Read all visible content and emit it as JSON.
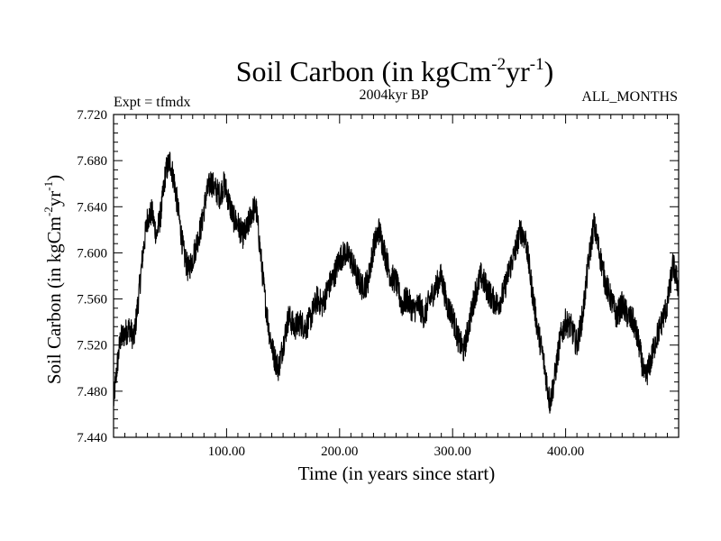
{
  "chart_data": {
    "type": "line",
    "title": {
      "main": "Soil Carbon (in kgCm",
      "sup1": "-2",
      "mid": "yr",
      "sup2": "-1",
      "end": ")"
    },
    "subtitle": "2004kyr BP",
    "left_note": "Expt = tfmdx",
    "right_note": "ALL_MONTHS",
    "xlabel": "Time (in years since start)",
    "ylabel": {
      "main": "Soil Carbon (in kgCm",
      "sup1": "-2",
      "mid": "yr",
      "sup2": "-1",
      "end": ")"
    },
    "xlim": [
      0,
      500
    ],
    "ylim": [
      7.44,
      7.72
    ],
    "x_ticks": [
      100,
      200,
      300,
      400
    ],
    "x_tick_labels": [
      "100.00",
      "200.00",
      "300.00",
      "400.00"
    ],
    "y_ticks": [
      7.44,
      7.48,
      7.52,
      7.56,
      7.6,
      7.64,
      7.68,
      7.72
    ],
    "y_tick_labels": [
      "7.440",
      "7.480",
      "7.520",
      "7.560",
      "7.600",
      "7.640",
      "7.680",
      "7.720"
    ],
    "grid": false,
    "line_color": "#000000",
    "series": [
      {
        "name": "Soil Carbon",
        "noise_amplitude": 0.012,
        "x": [
          0,
          3,
          6,
          10,
          14,
          18,
          22,
          26,
          30,
          34,
          38,
          42,
          46,
          50,
          54,
          58,
          62,
          66,
          70,
          74,
          78,
          82,
          86,
          90,
          94,
          98,
          102,
          106,
          110,
          114,
          118,
          122,
          126,
          130,
          134,
          138,
          142,
          146,
          150,
          155,
          160,
          165,
          170,
          175,
          180,
          185,
          190,
          195,
          200,
          205,
          210,
          215,
          220,
          225,
          230,
          235,
          240,
          245,
          250,
          255,
          260,
          265,
          270,
          275,
          280,
          285,
          290,
          295,
          300,
          305,
          310,
          315,
          320,
          325,
          330,
          335,
          340,
          345,
          350,
          355,
          360,
          365,
          370,
          375,
          380,
          383,
          386,
          390,
          395,
          400,
          405,
          410,
          415,
          420,
          425,
          430,
          435,
          440,
          445,
          450,
          455,
          460,
          465,
          470,
          475,
          480,
          485,
          490,
          495,
          500
        ],
        "y": [
          7.47,
          7.5,
          7.525,
          7.53,
          7.535,
          7.525,
          7.56,
          7.6,
          7.63,
          7.635,
          7.615,
          7.635,
          7.67,
          7.68,
          7.66,
          7.63,
          7.6,
          7.585,
          7.595,
          7.61,
          7.625,
          7.65,
          7.662,
          7.655,
          7.65,
          7.66,
          7.645,
          7.63,
          7.625,
          7.615,
          7.62,
          7.635,
          7.64,
          7.6,
          7.56,
          7.53,
          7.51,
          7.5,
          7.52,
          7.545,
          7.535,
          7.54,
          7.535,
          7.545,
          7.56,
          7.555,
          7.57,
          7.58,
          7.595,
          7.6,
          7.595,
          7.58,
          7.57,
          7.575,
          7.605,
          7.62,
          7.6,
          7.58,
          7.575,
          7.555,
          7.56,
          7.55,
          7.555,
          7.545,
          7.56,
          7.57,
          7.58,
          7.555,
          7.545,
          7.525,
          7.515,
          7.54,
          7.565,
          7.58,
          7.57,
          7.56,
          7.555,
          7.565,
          7.585,
          7.6,
          7.62,
          7.61,
          7.57,
          7.535,
          7.51,
          7.49,
          7.47,
          7.49,
          7.525,
          7.54,
          7.535,
          7.52,
          7.545,
          7.59,
          7.625,
          7.6,
          7.575,
          7.56,
          7.545,
          7.555,
          7.545,
          7.54,
          7.52,
          7.49,
          7.505,
          7.525,
          7.54,
          7.555,
          7.59,
          7.57
        ]
      }
    ]
  }
}
